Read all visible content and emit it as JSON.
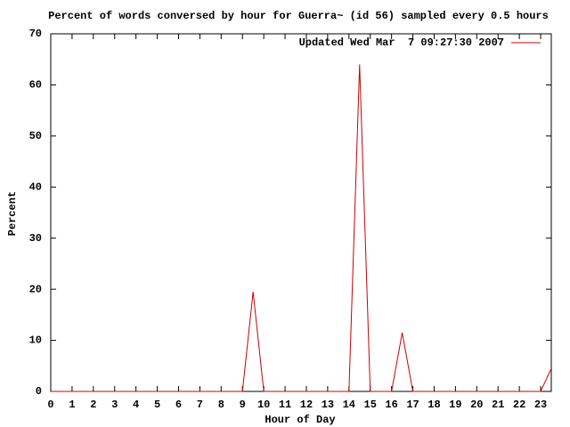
{
  "chart_data": {
    "type": "line",
    "title": "Percent of words conversed by hour for Guerra~ (id 56) sampled every 0.5 hours",
    "x_label": "Hour of Day",
    "y_label": "Percent",
    "x": [
      0,
      0.5,
      1,
      1.5,
      2,
      2.5,
      3,
      3.5,
      4,
      4.5,
      5,
      5.5,
      6,
      6.5,
      7,
      7.5,
      8,
      8.5,
      9,
      9.5,
      10,
      10.5,
      11,
      11.5,
      12,
      12.5,
      13,
      13.5,
      14,
      14.5,
      15,
      15.5,
      16,
      16.5,
      17,
      17.5,
      18,
      18.5,
      19,
      19.5,
      20,
      20.5,
      21,
      21.5,
      22,
      22.5,
      23,
      23.5
    ],
    "series": [
      {
        "name": "Updated Wed Mar  7 09:27:30 2007",
        "color": "#cc0000",
        "values": [
          0,
          0,
          0,
          0,
          0,
          0,
          0,
          0,
          0,
          0,
          0,
          0,
          0,
          0,
          0,
          0,
          0,
          0,
          0,
          19.5,
          0,
          0,
          0,
          0,
          0,
          0,
          0,
          0,
          0,
          64,
          0,
          0,
          0,
          11.5,
          0,
          0,
          0,
          0,
          0,
          0,
          0,
          0,
          0,
          0,
          0,
          0,
          0,
          4.5
        ]
      }
    ],
    "xlim": [
      0,
      23.5
    ],
    "xticks": [
      0,
      1,
      2,
      3,
      4,
      5,
      6,
      7,
      8,
      9,
      10,
      11,
      12,
      13,
      14,
      15,
      16,
      17,
      18,
      19,
      20,
      21,
      22,
      23
    ],
    "ylim": [
      0,
      70
    ],
    "yticks": [
      0,
      10,
      20,
      30,
      40,
      50,
      60,
      70
    ],
    "legend": "top-right"
  }
}
